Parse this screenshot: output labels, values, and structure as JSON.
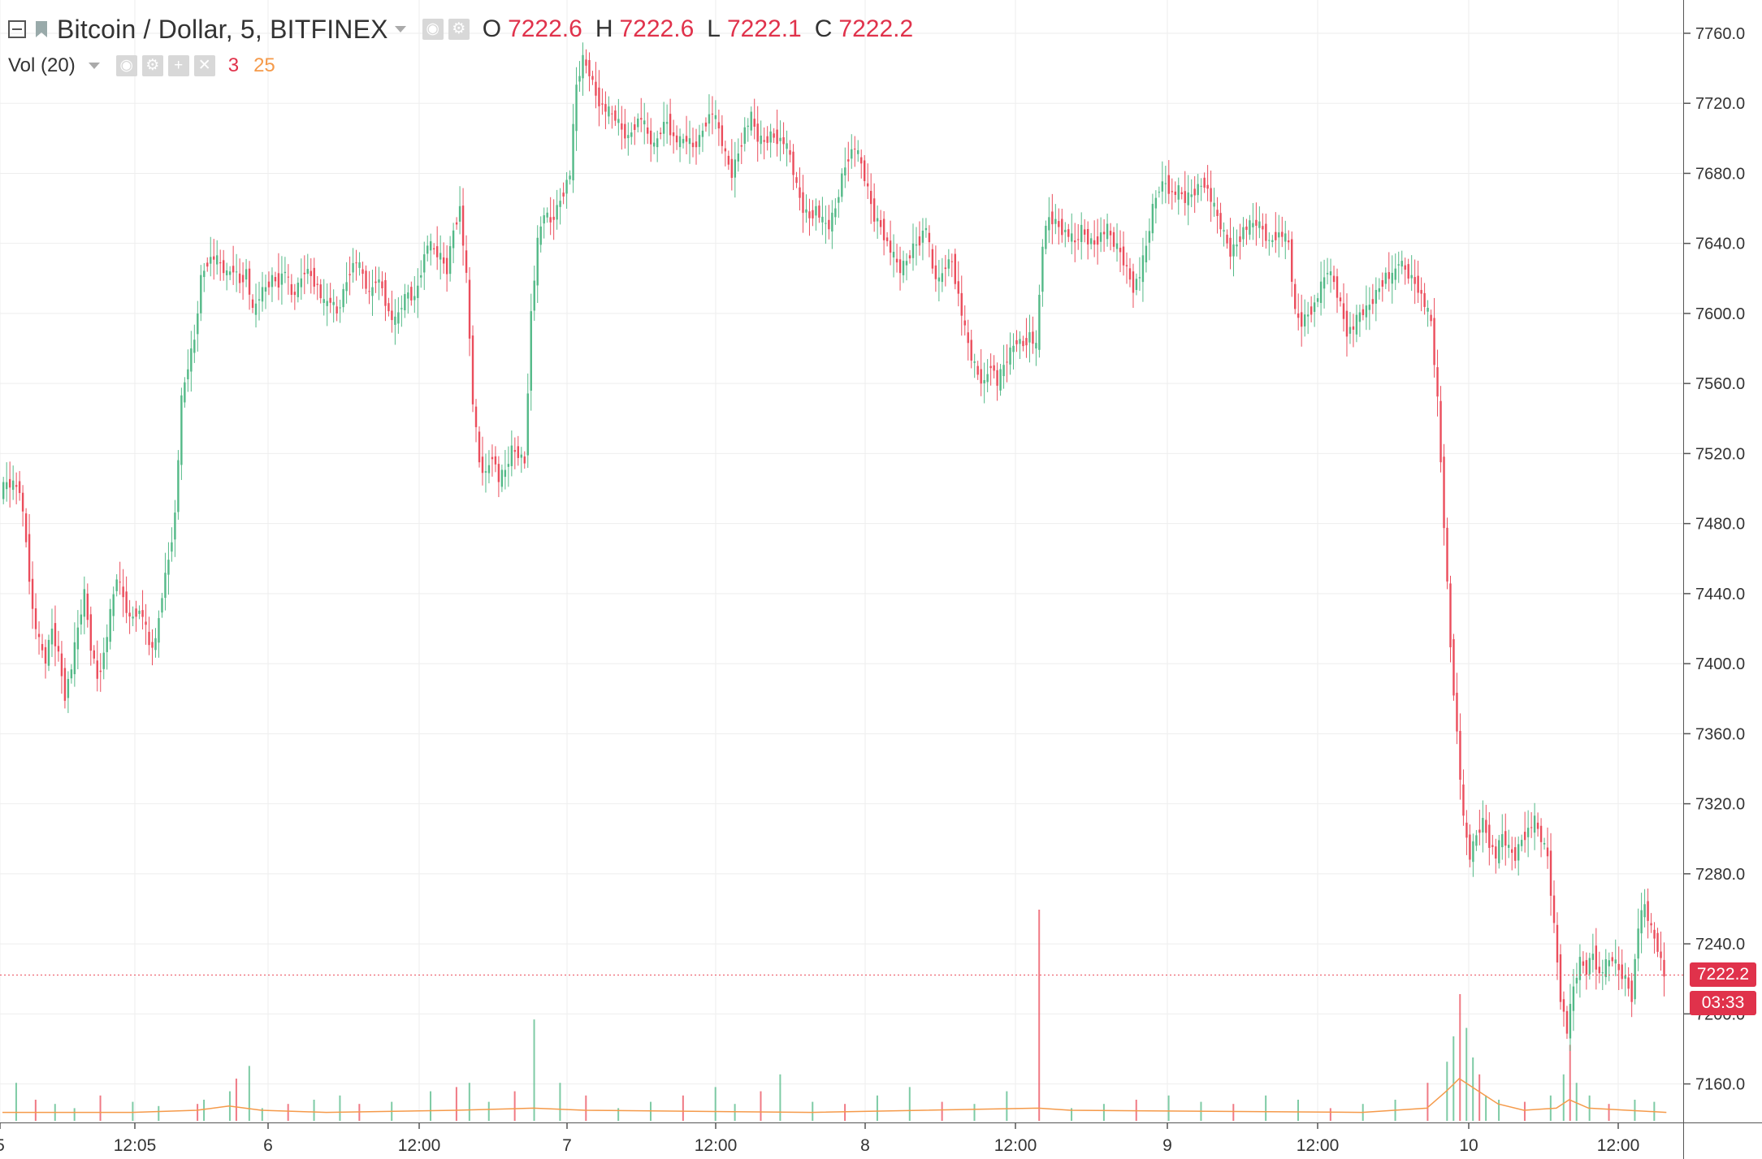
{
  "header": {
    "symbol_title": "Bitcoin / Dollar, 5, BITFINEX",
    "ohlc": [
      {
        "key": "O",
        "value": "7222.6"
      },
      {
        "key": "H",
        "value": "7222.6"
      },
      {
        "key": "L",
        "value": "7222.1"
      },
      {
        "key": "C",
        "value": "7222.2"
      }
    ],
    "icons": [
      "eye-icon",
      "gear-icon"
    ]
  },
  "volume_indicator": {
    "title": "Vol (20)",
    "value_1": "3",
    "value_2": "25",
    "icons": [
      "eye-icon",
      "gear-icon",
      "plus-icon",
      "close-icon"
    ]
  },
  "current_price": {
    "label": "7222.2",
    "countdown": "03:33",
    "value": 7222.2
  },
  "colors": {
    "up": "#53b987",
    "down": "#eb4d5c",
    "ma": "#f59a4a",
    "grid": "#eeeeee",
    "accent": "#e0324b"
  },
  "chart_data": {
    "type": "candlestick",
    "series": [
      {
        "name": "",
        "type": "candlestick",
        "note": "5-minute candles approximated as close path with wicks"
      },
      {
        "name": "Vol (20)",
        "type": "bar"
      }
    ],
    "price_axis_ticks": [
      "7760.0",
      "7720.0",
      "7680.0",
      "7640.0",
      "7600.0",
      "7560.0",
      "7520.0",
      "7480.0",
      "7440.0",
      "7400.0",
      "7360.0",
      "7320.0",
      "7280.0",
      "7240.0",
      "7200.0",
      "7160.0"
    ],
    "price_range": [
      7138,
      7779
    ],
    "time_axis_ticks": [
      "5",
      "12:05",
      "6",
      "12:00",
      "7",
      "12:00",
      "8",
      "12:00",
      "9",
      "12:00",
      "10",
      "12:00"
    ],
    "price_path": [
      [
        0,
        7498
      ],
      [
        2,
        7503
      ],
      [
        4,
        7502
      ],
      [
        6,
        7500
      ],
      [
        8,
        7470
      ],
      [
        10,
        7430
      ],
      [
        12,
        7412
      ],
      [
        14,
        7402
      ],
      [
        16,
        7420
      ],
      [
        18,
        7405
      ],
      [
        20,
        7382
      ],
      [
        22,
        7398
      ],
      [
        24,
        7420
      ],
      [
        26,
        7440
      ],
      [
        28,
        7410
      ],
      [
        30,
        7392
      ],
      [
        32,
        7405
      ],
      [
        34,
        7428
      ],
      [
        36,
        7450
      ],
      [
        38,
        7438
      ],
      [
        40,
        7425
      ],
      [
        42,
        7430
      ],
      [
        44,
        7428
      ],
      [
        46,
        7410
      ],
      [
        48,
        7412
      ],
      [
        50,
        7440
      ],
      [
        52,
        7460
      ],
      [
        54,
        7485
      ],
      [
        56,
        7550
      ],
      [
        58,
        7570
      ],
      [
        60,
        7585
      ],
      [
        62,
        7620
      ],
      [
        64,
        7630
      ],
      [
        66,
        7632
      ],
      [
        68,
        7628
      ],
      [
        70,
        7622
      ],
      [
        72,
        7626
      ],
      [
        74,
        7618
      ],
      [
        76,
        7624
      ],
      [
        78,
        7600
      ],
      [
        80,
        7610
      ],
      [
        82,
        7615
      ],
      [
        84,
        7620
      ],
      [
        86,
        7618
      ],
      [
        88,
        7625
      ],
      [
        90,
        7610
      ],
      [
        92,
        7615
      ],
      [
        94,
        7625
      ],
      [
        96,
        7622
      ],
      [
        98,
        7615
      ],
      [
        100,
        7605
      ],
      [
        102,
        7608
      ],
      [
        104,
        7600
      ],
      [
        106,
        7612
      ],
      [
        108,
        7625
      ],
      [
        110,
        7630
      ],
      [
        112,
        7622
      ],
      [
        114,
        7610
      ],
      [
        116,
        7620
      ],
      [
        118,
        7615
      ],
      [
        120,
        7600
      ],
      [
        122,
        7595
      ],
      [
        124,
        7605
      ],
      [
        126,
        7612
      ],
      [
        128,
        7608
      ],
      [
        130,
        7625
      ],
      [
        132,
        7640
      ],
      [
        134,
        7636
      ],
      [
        136,
        7632
      ],
      [
        138,
        7625
      ],
      [
        140,
        7648
      ],
      [
        142,
        7660
      ],
      [
        144,
        7620
      ],
      [
        146,
        7550
      ],
      [
        148,
        7515
      ],
      [
        150,
        7508
      ],
      [
        152,
        7520
      ],
      [
        154,
        7505
      ],
      [
        156,
        7510
      ],
      [
        158,
        7522
      ],
      [
        160,
        7520
      ],
      [
        162,
        7515
      ],
      [
        164,
        7600
      ],
      [
        166,
        7640
      ],
      [
        168,
        7658
      ],
      [
        170,
        7652
      ],
      [
        172,
        7660
      ],
      [
        174,
        7670
      ],
      [
        176,
        7680
      ],
      [
        178,
        7730
      ],
      [
        180,
        7745
      ],
      [
        182,
        7738
      ],
      [
        184,
        7725
      ],
      [
        186,
        7718
      ],
      [
        188,
        7715
      ],
      [
        190,
        7712
      ],
      [
        192,
        7705
      ],
      [
        194,
        7700
      ],
      [
        196,
        7708
      ],
      [
        198,
        7712
      ],
      [
        200,
        7702
      ],
      [
        202,
        7695
      ],
      [
        204,
        7705
      ],
      [
        206,
        7710
      ],
      [
        208,
        7700
      ],
      [
        210,
        7698
      ],
      [
        212,
        7700
      ],
      [
        214,
        7695
      ],
      [
        216,
        7700
      ],
      [
        218,
        7710
      ],
      [
        220,
        7715
      ],
      [
        222,
        7705
      ],
      [
        224,
        7690
      ],
      [
        226,
        7680
      ],
      [
        228,
        7692
      ],
      [
        230,
        7705
      ],
      [
        232,
        7712
      ],
      [
        234,
        7700
      ],
      [
        236,
        7698
      ],
      [
        238,
        7702
      ],
      [
        240,
        7700
      ],
      [
        242,
        7698
      ],
      [
        244,
        7690
      ],
      [
        246,
        7672
      ],
      [
        248,
        7660
      ],
      [
        250,
        7655
      ],
      [
        252,
        7660
      ],
      [
        254,
        7652
      ],
      [
        256,
        7650
      ],
      [
        258,
        7660
      ],
      [
        260,
        7678
      ],
      [
        262,
        7690
      ],
      [
        264,
        7695
      ],
      [
        266,
        7685
      ],
      [
        268,
        7670
      ],
      [
        270,
        7655
      ],
      [
        272,
        7650
      ],
      [
        274,
        7640
      ],
      [
        276,
        7632
      ],
      [
        278,
        7625
      ],
      [
        280,
        7630
      ],
      [
        282,
        7638
      ],
      [
        284,
        7642
      ],
      [
        286,
        7650
      ],
      [
        288,
        7625
      ],
      [
        290,
        7618
      ],
      [
        292,
        7628
      ],
      [
        294,
        7630
      ],
      [
        296,
        7610
      ],
      [
        298,
        7590
      ],
      [
        300,
        7575
      ],
      [
        302,
        7565
      ],
      [
        304,
        7560
      ],
      [
        306,
        7572
      ],
      [
        308,
        7560
      ],
      [
        310,
        7570
      ],
      [
        312,
        7578
      ],
      [
        314,
        7585
      ],
      [
        316,
        7582
      ],
      [
        318,
        7588
      ],
      [
        320,
        7580
      ],
      [
        322,
        7640
      ],
      [
        324,
        7655
      ],
      [
        326,
        7652
      ],
      [
        328,
        7648
      ],
      [
        330,
        7645
      ],
      [
        332,
        7640
      ],
      [
        334,
        7648
      ],
      [
        336,
        7642
      ],
      [
        338,
        7640
      ],
      [
        340,
        7645
      ],
      [
        342,
        7648
      ],
      [
        344,
        7640
      ],
      [
        346,
        7635
      ],
      [
        348,
        7625
      ],
      [
        350,
        7615
      ],
      [
        352,
        7622
      ],
      [
        354,
        7638
      ],
      [
        356,
        7660
      ],
      [
        358,
        7672
      ],
      [
        360,
        7675
      ],
      [
        362,
        7668
      ],
      [
        364,
        7670
      ],
      [
        366,
        7665
      ],
      [
        368,
        7668
      ],
      [
        370,
        7672
      ],
      [
        372,
        7675
      ],
      [
        374,
        7665
      ],
      [
        376,
        7655
      ],
      [
        378,
        7645
      ],
      [
        380,
        7635
      ],
      [
        382,
        7640
      ],
      [
        384,
        7648
      ],
      [
        386,
        7650
      ],
      [
        388,
        7652
      ],
      [
        390,
        7648
      ],
      [
        392,
        7640
      ],
      [
        394,
        7645
      ],
      [
        396,
        7645
      ],
      [
        398,
        7640
      ],
      [
        400,
        7600
      ],
      [
        402,
        7595
      ],
      [
        404,
        7600
      ],
      [
        406,
        7605
      ],
      [
        408,
        7615
      ],
      [
        410,
        7625
      ],
      [
        412,
        7618
      ],
      [
        414,
        7605
      ],
      [
        416,
        7590
      ],
      [
        418,
        7592
      ],
      [
        420,
        7600
      ],
      [
        422,
        7602
      ],
      [
        424,
        7608
      ],
      [
        426,
        7615
      ],
      [
        428,
        7622
      ],
      [
        430,
        7620
      ],
      [
        432,
        7630
      ],
      [
        434,
        7625
      ],
      [
        436,
        7620
      ],
      [
        438,
        7615
      ],
      [
        440,
        7605
      ],
      [
        442,
        7595
      ],
      [
        444,
        7550
      ],
      [
        446,
        7480
      ],
      [
        448,
        7410
      ],
      [
        450,
        7360
      ],
      [
        452,
        7310
      ],
      [
        454,
        7290
      ],
      [
        456,
        7302
      ],
      [
        458,
        7310
      ],
      [
        460,
        7298
      ],
      [
        462,
        7290
      ],
      [
        464,
        7302
      ],
      [
        466,
        7294
      ],
      [
        468,
        7290
      ],
      [
        470,
        7300
      ],
      [
        472,
        7305
      ],
      [
        474,
        7310
      ],
      [
        476,
        7300
      ],
      [
        478,
        7290
      ],
      [
        480,
        7250
      ],
      [
        482,
        7210
      ],
      [
        484,
        7190
      ],
      [
        486,
        7215
      ],
      [
        488,
        7230
      ],
      [
        490,
        7225
      ],
      [
        492,
        7235
      ],
      [
        494,
        7222
      ],
      [
        496,
        7228
      ],
      [
        498,
        7232
      ],
      [
        500,
        7225
      ],
      [
        502,
        7220
      ],
      [
        504,
        7210
      ],
      [
        506,
        7250
      ],
      [
        508,
        7262
      ],
      [
        510,
        7248
      ],
      [
        512,
        7238
      ],
      [
        514,
        7222
      ]
    ],
    "volume_bars": [
      [
        4,
        18
      ],
      [
        10,
        10
      ],
      [
        16,
        8
      ],
      [
        22,
        6
      ],
      [
        30,
        12
      ],
      [
        40,
        9
      ],
      [
        48,
        7
      ],
      [
        60,
        8
      ],
      [
        62,
        10
      ],
      [
        70,
        14
      ],
      [
        72,
        20
      ],
      [
        76,
        26
      ],
      [
        80,
        6
      ],
      [
        88,
        8
      ],
      [
        96,
        10
      ],
      [
        104,
        12
      ],
      [
        110,
        8
      ],
      [
        120,
        9
      ],
      [
        132,
        14
      ],
      [
        140,
        16
      ],
      [
        144,
        18
      ],
      [
        150,
        9
      ],
      [
        158,
        14
      ],
      [
        164,
        48
      ],
      [
        172,
        18
      ],
      [
        180,
        12
      ],
      [
        190,
        6
      ],
      [
        200,
        9
      ],
      [
        210,
        12
      ],
      [
        220,
        16
      ],
      [
        226,
        8
      ],
      [
        234,
        14
      ],
      [
        240,
        22
      ],
      [
        250,
        9
      ],
      [
        260,
        8
      ],
      [
        270,
        12
      ],
      [
        280,
        16
      ],
      [
        290,
        9
      ],
      [
        300,
        8
      ],
      [
        310,
        14
      ],
      [
        320,
        100
      ],
      [
        330,
        6
      ],
      [
        340,
        8
      ],
      [
        350,
        10
      ],
      [
        360,
        12
      ],
      [
        370,
        9
      ],
      [
        380,
        8
      ],
      [
        390,
        12
      ],
      [
        400,
        10
      ],
      [
        410,
        6
      ],
      [
        420,
        8
      ],
      [
        430,
        10
      ],
      [
        440,
        18
      ],
      [
        446,
        28
      ],
      [
        448,
        40
      ],
      [
        450,
        60
      ],
      [
        452,
        44
      ],
      [
        454,
        30
      ],
      [
        456,
        22
      ],
      [
        458,
        12
      ],
      [
        462,
        10
      ],
      [
        470,
        9
      ],
      [
        478,
        12
      ],
      [
        482,
        22
      ],
      [
        484,
        36
      ],
      [
        486,
        18
      ],
      [
        490,
        12
      ],
      [
        496,
        8
      ],
      [
        504,
        10
      ],
      [
        510,
        9
      ]
    ],
    "volume_ma": [
      [
        0,
        4
      ],
      [
        40,
        4
      ],
      [
        60,
        5
      ],
      [
        70,
        7
      ],
      [
        80,
        5
      ],
      [
        100,
        4
      ],
      [
        140,
        5
      ],
      [
        164,
        6
      ],
      [
        180,
        5
      ],
      [
        250,
        4
      ],
      [
        320,
        6
      ],
      [
        330,
        5
      ],
      [
        420,
        4
      ],
      [
        440,
        6
      ],
      [
        446,
        14
      ],
      [
        450,
        20
      ],
      [
        456,
        14
      ],
      [
        462,
        8
      ],
      [
        470,
        5
      ],
      [
        480,
        6
      ],
      [
        484,
        10
      ],
      [
        490,
        6
      ],
      [
        514,
        4
      ]
    ]
  }
}
